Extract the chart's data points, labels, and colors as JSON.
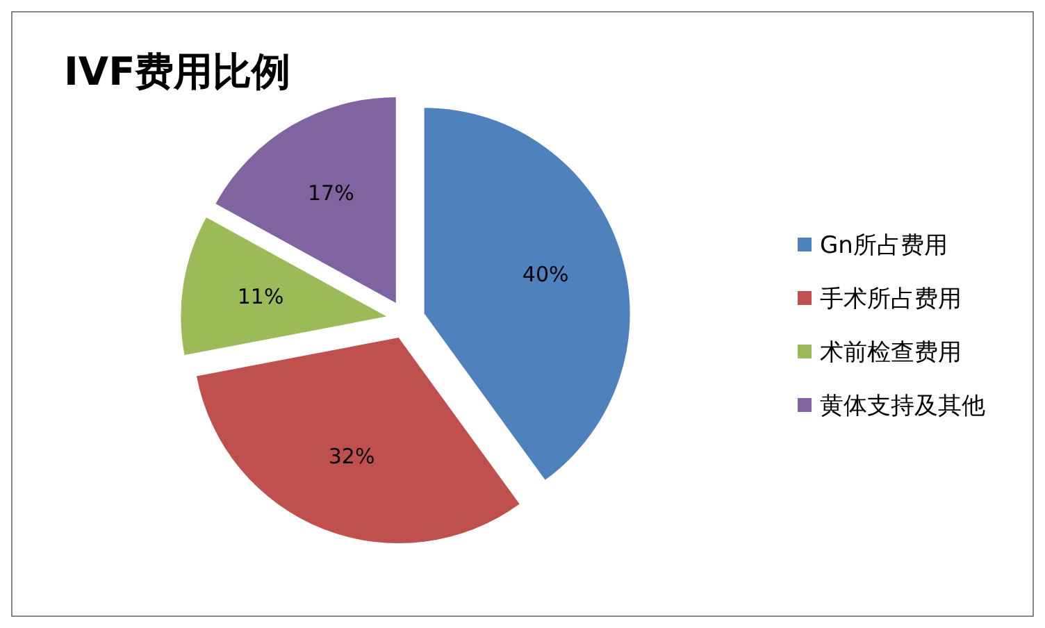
{
  "chart_data": {
    "type": "pie",
    "title": "IVF费用比例",
    "categories": [
      "Gn所占费用",
      "手术所占费用",
      "术前检查费用",
      "黄体支持及其他"
    ],
    "values": [
      40,
      32,
      11,
      17
    ],
    "value_labels": [
      "40%",
      "32%",
      "11%",
      "17%"
    ],
    "colors": [
      "#4f81bd",
      "#c0504d",
      "#9bbb59",
      "#8064a2"
    ],
    "legend": "right"
  }
}
